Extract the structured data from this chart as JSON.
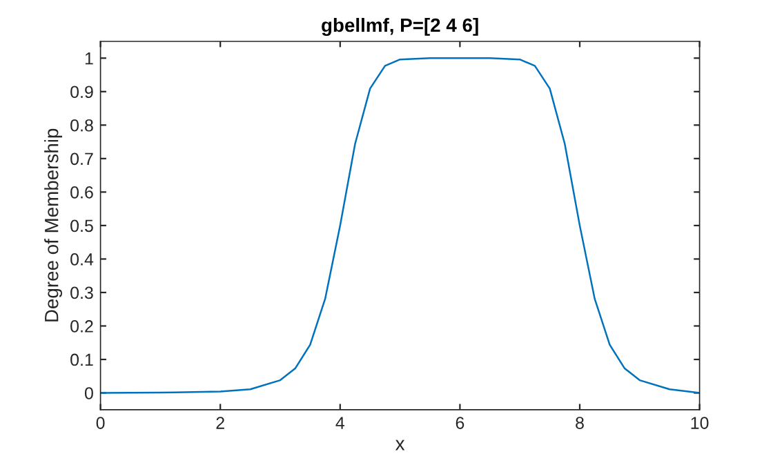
{
  "chart_data": {
    "type": "line",
    "title": "gbellmf, P=[2 4 6]",
    "xlabel": "x",
    "ylabel": "Degree of Membership",
    "x": [
      0,
      1,
      2,
      2.5,
      3,
      3.25,
      3.5,
      3.75,
      4,
      4.25,
      4.5,
      4.75,
      5,
      5.5,
      6,
      6.5,
      7,
      7.25,
      7.5,
      7.75,
      8,
      8.25,
      8.5,
      8.75,
      9,
      9.5,
      10
    ],
    "series": [
      {
        "color": "#0072bd",
        "values": [
          0.0,
          0.001,
          0.004,
          0.011,
          0.038,
          0.073,
          0.144,
          0.281,
          0.5,
          0.744,
          0.909,
          0.977,
          0.996,
          1.0,
          1.0,
          1.0,
          0.996,
          0.977,
          0.909,
          0.744,
          0.5,
          0.281,
          0.144,
          0.073,
          0.038,
          0.011,
          0.0
        ]
      }
    ],
    "xlim": [
      0,
      10
    ],
    "ylim": [
      -0.05,
      1.05
    ],
    "xticks": [
      0,
      2,
      4,
      6,
      8,
      10
    ],
    "yticks": [
      0,
      0.1,
      0.2,
      0.3,
      0.4,
      0.5,
      0.6,
      0.7,
      0.8,
      0.9,
      1
    ],
    "grid": false,
    "legend": false,
    "marker": "none",
    "line_style": "solid"
  }
}
